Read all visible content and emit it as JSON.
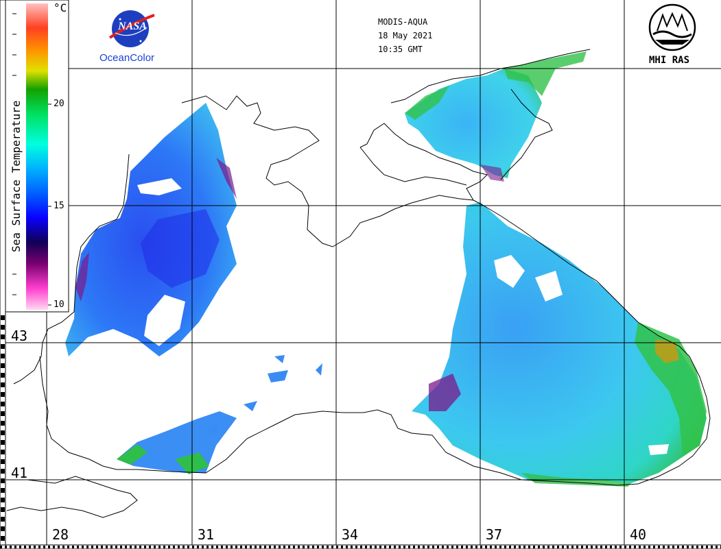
{
  "header": {
    "sensor": "MODIS-AQUA",
    "date": "18 May 2021",
    "time": "10:35 GMT"
  },
  "logos": {
    "nasa_text": "NASA",
    "nasa_caption": "OceanColor",
    "institute": "MHI RAS"
  },
  "colorbar": {
    "title": "Sea Surface Temperature",
    "unit": "°C",
    "ticks": [
      "20",
      "15",
      "10"
    ],
    "palette": [
      "#ffd8f0",
      "#ff3fd0",
      "#7a0070",
      "#110055",
      "#0a00ff",
      "#0060ff",
      "#00b0ff",
      "#00ffe0",
      "#00e060",
      "#14a000",
      "#e0e000",
      "#ff9000",
      "#ff4020",
      "#ffc0c0"
    ]
  },
  "grid": {
    "latitudes": [
      "43",
      "41"
    ],
    "longitudes": [
      "28",
      "31",
      "34",
      "37",
      "40"
    ]
  },
  "colors": {
    "land": "#ffffff",
    "coast": "#000000",
    "grid": "#000000",
    "sea_cold": "#1a3cf0",
    "sea_mid": "#2d8cf8",
    "sea_warm": "#3fd0ee",
    "sea_green": "#31c24a",
    "sea_yellow": "#b0a020",
    "sea_purple": "#7a1a8a"
  }
}
